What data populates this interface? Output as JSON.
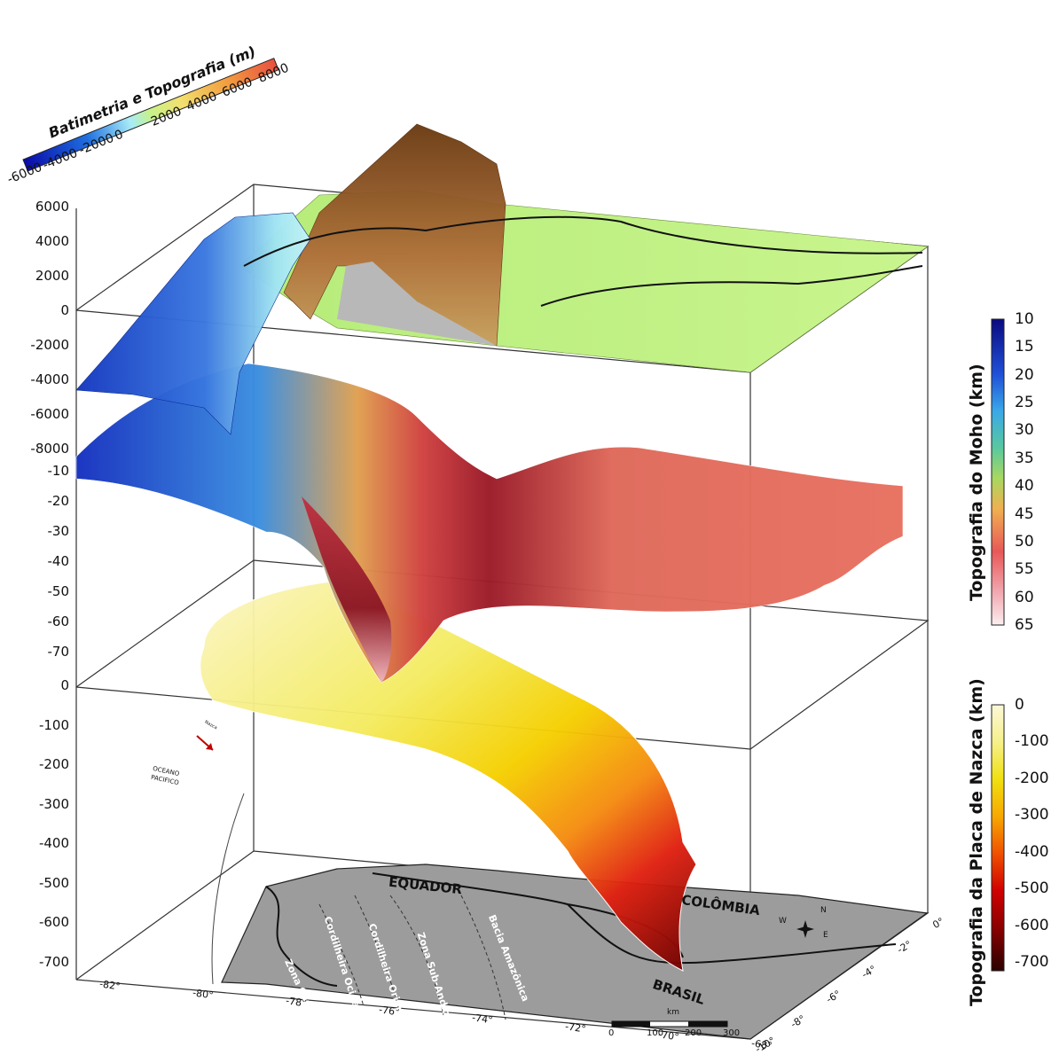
{
  "bathy_colorbar": {
    "title": "Batimetria e Topografia (m)",
    "ticks": [
      "-6000",
      "-4000",
      "-2000",
      "0",
      "2000",
      "4000",
      "6000",
      "8000"
    ]
  },
  "moho_colorbar": {
    "title": "Topografia do Moho (km)",
    "ticks": [
      "10",
      "15",
      "20",
      "25",
      "30",
      "35",
      "40",
      "45",
      "50",
      "55",
      "60",
      "65"
    ]
  },
  "nazca_colorbar": {
    "title": "Topografia da Placa de Nazca (km)",
    "ticks": [
      "0",
      "-100",
      "-200",
      "-300",
      "-400",
      "-500",
      "-600",
      "-700"
    ]
  },
  "z_axis_topo": [
    "6000",
    "4000",
    "2000",
    "0",
    "-2000",
    "-4000",
    "-6000",
    "-8000"
  ],
  "z_axis_moho": [
    "-10",
    "-20",
    "-30",
    "-40",
    "-50",
    "-60",
    "-70"
  ],
  "z_axis_nazca": [
    "0",
    "-100",
    "-200",
    "-300",
    "-400",
    "-500",
    "-600",
    "-700"
  ],
  "lon_ticks": [
    "-82°",
    "-80°",
    "-78°",
    "-76°",
    "-74°",
    "-72°",
    "-70°",
    "-68°"
  ],
  "lat_ticks": [
    "0°",
    "-2°",
    "-4°",
    "-6°",
    "-8°",
    "-10°"
  ],
  "map_labels": {
    "country_ecuador": "EQUADOR",
    "country_colombia": "COLÔMBIA",
    "country_brazil": "BRASIL",
    "zone_coastal": "Zona Costeira",
    "zone_western": "Cordilheira Ocidental",
    "zone_eastern": "Cordilheira Oriental",
    "zone_subandean": "Zona Sub-Andina",
    "basin": "Bacia Amazônica",
    "ocean_1": "OCEANO",
    "ocean_2": "PACIFICO",
    "trench": "Nazca",
    "scale_unit": "km",
    "scale_ticks": [
      "0",
      "100",
      "200",
      "300"
    ],
    "compass_n": "N",
    "compass_e": "E",
    "compass_w": "W"
  },
  "colors": {
    "bathy_deep": "#0a1fb8",
    "bathy_shallow": "#9fe8f4",
    "land_low": "#c7f28a",
    "land_high": "#8a4f1f",
    "moho_shallow": "#1a33c8",
    "moho_mid": "#e8584a",
    "moho_deep": "#8b1a24",
    "nazca_shallow": "#f5f0b0",
    "nazca_deep": "#6a0000",
    "map_gray": "#9c9c9c"
  }
}
